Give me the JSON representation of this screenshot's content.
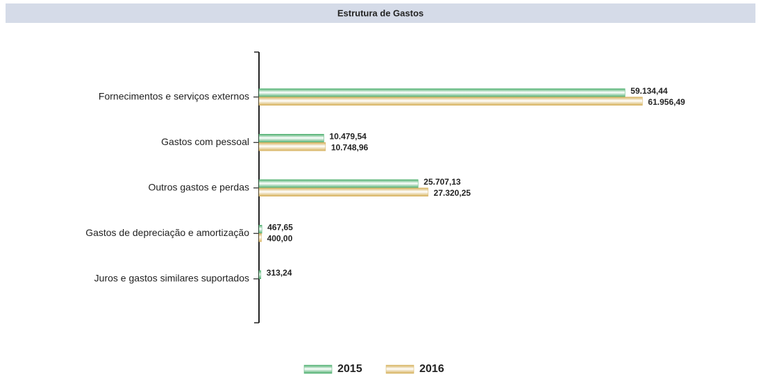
{
  "chart_data": {
    "type": "barh",
    "title": "Estrutura de Gastos",
    "categories": [
      "Fornecimentos e serviços externos",
      "Gastos com pessoal",
      "Outros gastos e perdas",
      "Gastos de depreciação e amortização",
      "Juros e gastos similares suportados"
    ],
    "series": [
      {
        "name": "2015",
        "color": "#4caf6e",
        "values": [
          59134.44,
          10479.54,
          25707.13,
          467.65,
          313.24
        ],
        "value_labels": [
          "59.134,44",
          "10.479,54",
          "25.707,13",
          "467,65",
          "313,24"
        ]
      },
      {
        "name": "2016",
        "color": "#d6b15c",
        "values": [
          61956.49,
          10748.96,
          27320.25,
          400.0,
          null
        ],
        "value_labels": [
          "61.956,49",
          "10.748,96",
          "27.320,25",
          "400,00",
          null
        ]
      }
    ],
    "xlim": [
      0,
      70000
    ],
    "legend": "bottom"
  }
}
